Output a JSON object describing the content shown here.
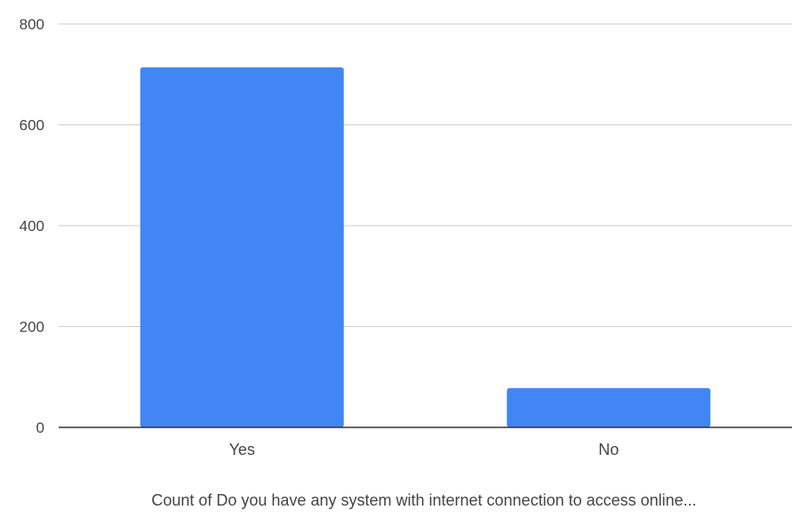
{
  "chart_data": {
    "type": "bar",
    "categories": [
      "Yes",
      "No"
    ],
    "values": [
      714,
      78
    ],
    "title": "",
    "xlabel": "Count of Do you have any system with internet connection to  access online...",
    "ylabel": "",
    "ylim": [
      0,
      800
    ],
    "yticks": [
      0,
      200,
      400,
      600,
      800
    ],
    "grid": true,
    "legend": "none",
    "colors": {
      "bar": "#4285f4",
      "grid": "#cccccc",
      "axis": "#333333",
      "text": "#444444"
    }
  }
}
